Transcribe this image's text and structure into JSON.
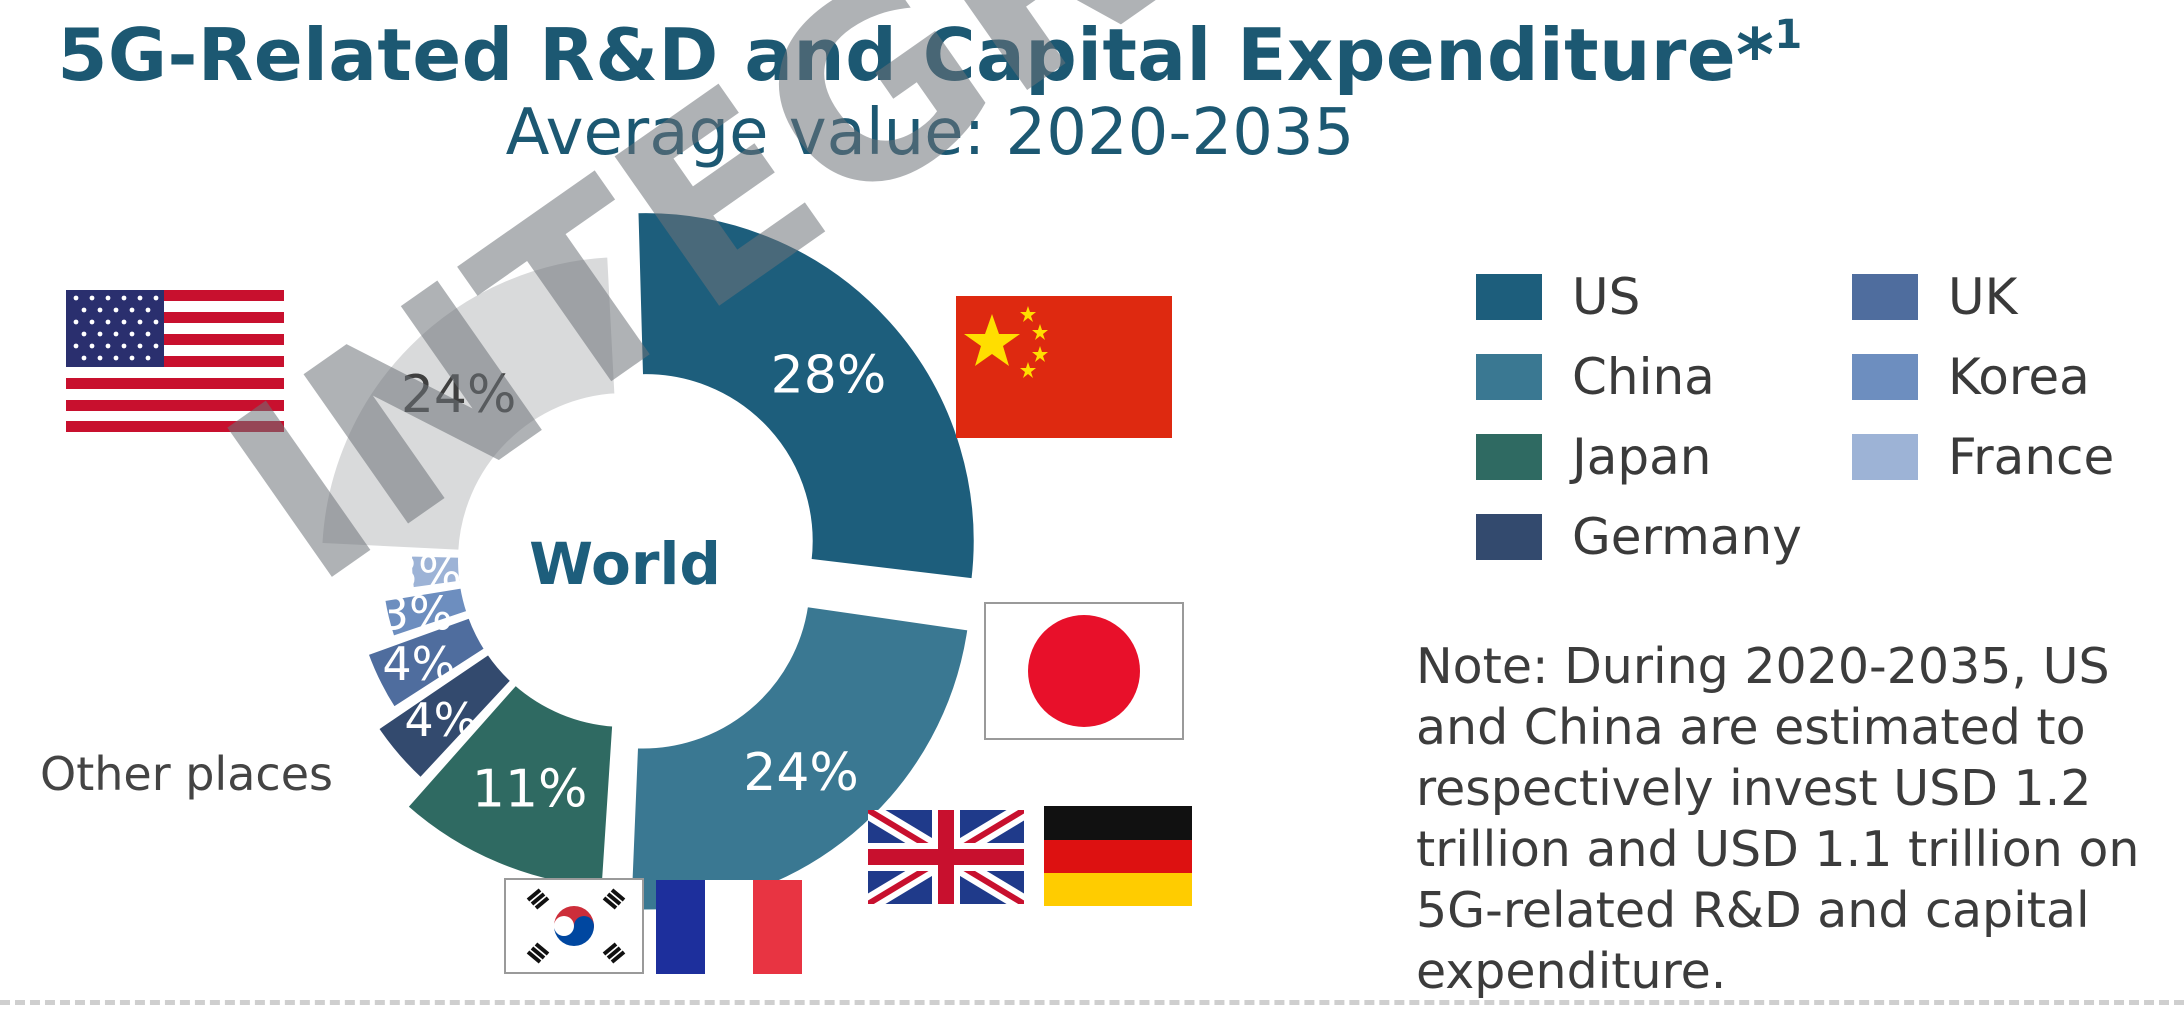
{
  "title": "5G-Related R&D and Capital Expenditure*",
  "title_sup": "1",
  "subtitle": "Average value: 2020-2035",
  "center_label": "World",
  "other_label": "Other places",
  "legend": [
    {
      "label": "US",
      "color": "#1d5e7c"
    },
    {
      "label": "UK",
      "color": "#4f6d9e"
    },
    {
      "label": "China",
      "color": "#3a7892"
    },
    {
      "label": "Korea",
      "color": "#6d8ebf"
    },
    {
      "label": "Japan",
      "color": "#2f6a62"
    },
    {
      "label": "France",
      "color": "#9db3d6"
    },
    {
      "label": "Germany",
      "color": "#334a6e"
    }
  ],
  "note": "Note: During 2020-2035, US and China are estimated to respectively invest USD 1.2 trillion and USD 1.1 trillion on 5G-related R&D and capital expenditure.",
  "watermark": "INTEGRAL Co., Ltd",
  "chart_data": {
    "type": "pie",
    "title": "5G-Related R&D and Capital Expenditure*1",
    "subtitle": "Average value: 2020-2035",
    "categories": [
      "US",
      "China",
      "Japan",
      "Germany",
      "UK",
      "Korea",
      "France",
      "Other places"
    ],
    "values": [
      28,
      24,
      11,
      4,
      4,
      3,
      3,
      24
    ],
    "labels": [
      "28%",
      "24%",
      "11%",
      "4%",
      "4%",
      "3%",
      "3%",
      "24%"
    ],
    "colors": [
      "#1d5e7c",
      "#3a7892",
      "#2f6a62",
      "#334a6e",
      "#4f6d9e",
      "#6d8ebf",
      "#9db3d6",
      "#d9dadb"
    ],
    "label_colors": [
      "#ffffff",
      "#ffffff",
      "#ffffff",
      "#ffffff",
      "#ffffff",
      "#ffffff",
      "#ffffff",
      "#3f3f3f"
    ],
    "center_label": "World",
    "legend_position": "right"
  }
}
